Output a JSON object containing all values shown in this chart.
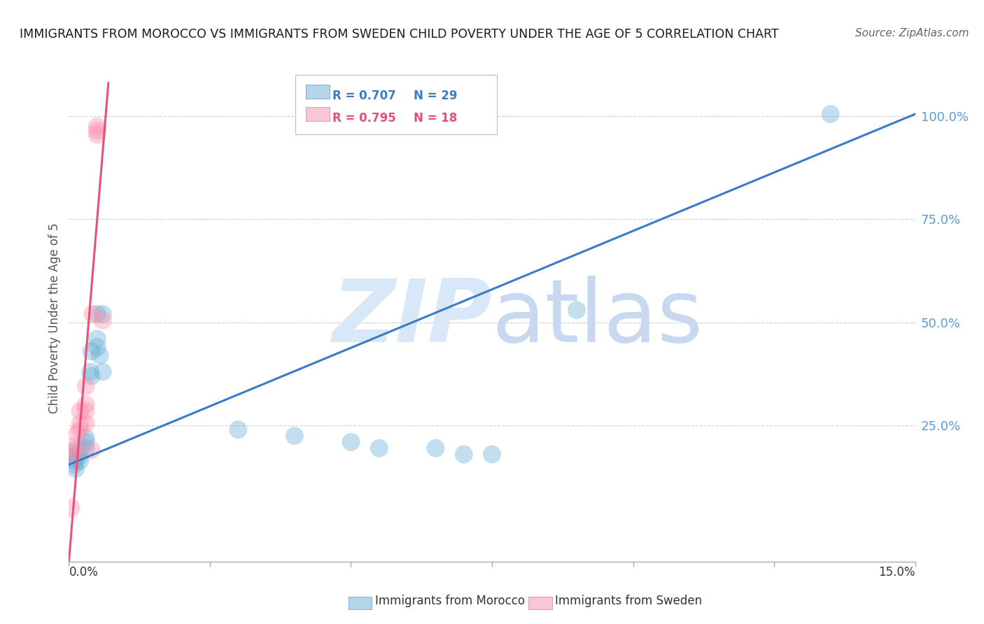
{
  "title": "IMMIGRANTS FROM MOROCCO VS IMMIGRANTS FROM SWEDEN CHILD POVERTY UNDER THE AGE OF 5 CORRELATION CHART",
  "source": "Source: ZipAtlas.com",
  "ylabel": "Child Poverty Under the Age of 5",
  "ytick_labels": [
    "100.0%",
    "75.0%",
    "50.0%",
    "25.0%"
  ],
  "ytick_values": [
    1.0,
    0.75,
    0.5,
    0.25
  ],
  "legend_r1": "R = 0.707",
  "legend_n1": "N = 29",
  "legend_r2": "R = 0.795",
  "legend_n2": "N = 18",
  "legend_label1": "Immigrants from Morocco",
  "legend_label2": "Immigrants from Sweden",
  "xlim": [
    0.0,
    0.15
  ],
  "ylim": [
    -0.08,
    1.1
  ],
  "morocco_scatter": [
    [
      0.0005,
      0.185
    ],
    [
      0.0008,
      0.175
    ],
    [
      0.001,
      0.165
    ],
    [
      0.001,
      0.155
    ],
    [
      0.0012,
      0.145
    ],
    [
      0.002,
      0.19
    ],
    [
      0.0018,
      0.175
    ],
    [
      0.002,
      0.165
    ],
    [
      0.003,
      0.22
    ],
    [
      0.003,
      0.21
    ],
    [
      0.003,
      0.195
    ],
    [
      0.004,
      0.43
    ],
    [
      0.0038,
      0.38
    ],
    [
      0.004,
      0.37
    ],
    [
      0.005,
      0.52
    ],
    [
      0.005,
      0.46
    ],
    [
      0.005,
      0.44
    ],
    [
      0.0055,
      0.42
    ],
    [
      0.006,
      0.52
    ],
    [
      0.006,
      0.38
    ],
    [
      0.03,
      0.24
    ],
    [
      0.04,
      0.225
    ],
    [
      0.05,
      0.21
    ],
    [
      0.055,
      0.195
    ],
    [
      0.065,
      0.195
    ],
    [
      0.07,
      0.18
    ],
    [
      0.075,
      0.18
    ],
    [
      0.135,
      1.005
    ],
    [
      0.09,
      0.53
    ]
  ],
  "sweden_scatter": [
    [
      0.0004,
      0.05
    ],
    [
      0.0008,
      0.175
    ],
    [
      0.001,
      0.19
    ],
    [
      0.001,
      0.2
    ],
    [
      0.0015,
      0.23
    ],
    [
      0.002,
      0.24
    ],
    [
      0.002,
      0.255
    ],
    [
      0.002,
      0.285
    ],
    [
      0.003,
      0.255
    ],
    [
      0.003,
      0.285
    ],
    [
      0.003,
      0.3
    ],
    [
      0.003,
      0.345
    ],
    [
      0.004,
      0.19
    ],
    [
      0.0042,
      0.52
    ],
    [
      0.005,
      0.955
    ],
    [
      0.005,
      0.965
    ],
    [
      0.005,
      0.975
    ],
    [
      0.006,
      0.505
    ]
  ],
  "morocco_line_x": [
    0.0,
    0.15
  ],
  "morocco_line_y": [
    0.155,
    1.005
  ],
  "sweden_line_x": [
    0.0,
    0.007
  ],
  "sweden_line_y": [
    -0.08,
    1.08
  ],
  "scatter_size": 350,
  "morocco_color": "#6BAED6",
  "sweden_color": "#FC8FAB",
  "morocco_line_color": "#3A7BC8",
  "sweden_line_color": "#E8507A",
  "bg_color": "#FFFFFF",
  "grid_color": "#CCCCCC",
  "watermark_zip_color": "#D8E8F8",
  "watermark_atlas_color": "#C8D8F0",
  "title_color": "#1A1A1A",
  "ylabel_color": "#555555",
  "tick_color_right": "#5B9BD5",
  "source_color": "#666666"
}
